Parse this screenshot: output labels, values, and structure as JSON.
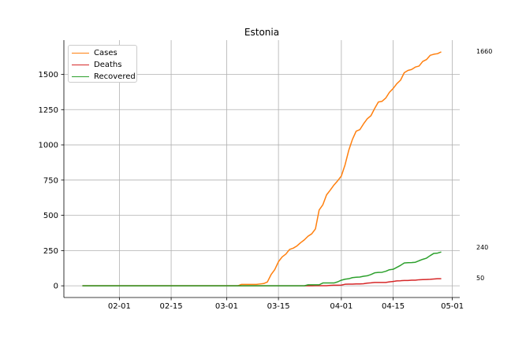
{
  "chart_data": {
    "type": "line",
    "title": "Estonia",
    "xlabel": "",
    "ylabel": "",
    "x_start": "2020-01-22",
    "x_end": "2020-04-28",
    "xlim": [
      "2020-01-17",
      "2020-05-03"
    ],
    "ylim": [
      -83,
      1743
    ],
    "grid": true,
    "legend_position": "top-left",
    "x_ticks": [
      {
        "date": "2020-02-01",
        "label": "02-01"
      },
      {
        "date": "2020-02-15",
        "label": "02-15"
      },
      {
        "date": "2020-03-01",
        "label": "03-01"
      },
      {
        "date": "2020-03-15",
        "label": "03-15"
      },
      {
        "date": "2020-04-01",
        "label": "04-01"
      },
      {
        "date": "2020-04-15",
        "label": "04-15"
      },
      {
        "date": "2020-05-01",
        "label": "05-01"
      }
    ],
    "y_ticks": [
      0,
      250,
      500,
      750,
      1000,
      1250,
      1500
    ],
    "series": [
      {
        "name": "Cases",
        "color": "#ff7f0e",
        "end_label": "1660",
        "points": [
          [
            "2020-01-22",
            0
          ],
          [
            "2020-03-04",
            0
          ],
          [
            "2020-03-05",
            10
          ],
          [
            "2020-03-06",
            10
          ],
          [
            "2020-03-07",
            10
          ],
          [
            "2020-03-08",
            10
          ],
          [
            "2020-03-09",
            10
          ],
          [
            "2020-03-10",
            13
          ],
          [
            "2020-03-11",
            16
          ],
          [
            "2020-03-12",
            27
          ],
          [
            "2020-03-13",
            79
          ],
          [
            "2020-03-14",
            115
          ],
          [
            "2020-03-15",
            171
          ],
          [
            "2020-03-16",
            205
          ],
          [
            "2020-03-17",
            225
          ],
          [
            "2020-03-18",
            258
          ],
          [
            "2020-03-19",
            267
          ],
          [
            "2020-03-20",
            283
          ],
          [
            "2020-03-21",
            306
          ],
          [
            "2020-03-22",
            326
          ],
          [
            "2020-03-23",
            352
          ],
          [
            "2020-03-24",
            369
          ],
          [
            "2020-03-25",
            404
          ],
          [
            "2020-03-26",
            538
          ],
          [
            "2020-03-27",
            575
          ],
          [
            "2020-03-28",
            645
          ],
          [
            "2020-03-29",
            679
          ],
          [
            "2020-03-30",
            715
          ],
          [
            "2020-03-31",
            745
          ],
          [
            "2020-04-01",
            779
          ],
          [
            "2020-04-02",
            858
          ],
          [
            "2020-04-03",
            961
          ],
          [
            "2020-04-04",
            1039
          ],
          [
            "2020-04-05",
            1097
          ],
          [
            "2020-04-06",
            1108
          ],
          [
            "2020-04-07",
            1149
          ],
          [
            "2020-04-08",
            1185
          ],
          [
            "2020-04-09",
            1207
          ],
          [
            "2020-04-10",
            1258
          ],
          [
            "2020-04-11",
            1304
          ],
          [
            "2020-04-12",
            1309
          ],
          [
            "2020-04-13",
            1332
          ],
          [
            "2020-04-14",
            1373
          ],
          [
            "2020-04-15",
            1400
          ],
          [
            "2020-04-16",
            1434
          ],
          [
            "2020-04-17",
            1459
          ],
          [
            "2020-04-18",
            1512
          ],
          [
            "2020-04-19",
            1528
          ],
          [
            "2020-04-20",
            1535
          ],
          [
            "2020-04-21",
            1552
          ],
          [
            "2020-04-22",
            1559
          ],
          [
            "2020-04-23",
            1592
          ],
          [
            "2020-04-24",
            1605
          ],
          [
            "2020-04-25",
            1635
          ],
          [
            "2020-04-26",
            1643
          ],
          [
            "2020-04-27",
            1647
          ],
          [
            "2020-04-28",
            1660
          ]
        ]
      },
      {
        "name": "Deaths",
        "color": "#d62728",
        "end_label": "50",
        "points": [
          [
            "2020-01-22",
            0
          ],
          [
            "2020-03-24",
            0
          ],
          [
            "2020-03-25",
            1
          ],
          [
            "2020-03-26",
            1
          ],
          [
            "2020-03-27",
            1
          ],
          [
            "2020-03-28",
            1
          ],
          [
            "2020-03-29",
            3
          ],
          [
            "2020-03-30",
            4
          ],
          [
            "2020-03-31",
            4
          ],
          [
            "2020-04-01",
            5
          ],
          [
            "2020-04-02",
            11
          ],
          [
            "2020-04-03",
            12
          ],
          [
            "2020-04-04",
            12
          ],
          [
            "2020-04-05",
            13
          ],
          [
            "2020-04-06",
            13
          ],
          [
            "2020-04-07",
            15
          ],
          [
            "2020-04-08",
            19
          ],
          [
            "2020-04-09",
            21
          ],
          [
            "2020-04-10",
            24
          ],
          [
            "2020-04-11",
            24
          ],
          [
            "2020-04-12",
            24
          ],
          [
            "2020-04-13",
            24
          ],
          [
            "2020-04-14",
            28
          ],
          [
            "2020-04-15",
            31
          ],
          [
            "2020-04-16",
            35
          ],
          [
            "2020-04-17",
            36
          ],
          [
            "2020-04-18",
            38
          ],
          [
            "2020-04-19",
            38
          ],
          [
            "2020-04-20",
            40
          ],
          [
            "2020-04-21",
            40
          ],
          [
            "2020-04-22",
            43
          ],
          [
            "2020-04-23",
            44
          ],
          [
            "2020-04-24",
            45
          ],
          [
            "2020-04-25",
            46
          ],
          [
            "2020-04-26",
            48
          ],
          [
            "2020-04-27",
            50
          ],
          [
            "2020-04-28",
            50
          ]
        ]
      },
      {
        "name": "Recovered",
        "color": "#2ca02c",
        "end_label": "240",
        "points": [
          [
            "2020-01-22",
            0
          ],
          [
            "2020-03-22",
            0
          ],
          [
            "2020-03-23",
            7
          ],
          [
            "2020-03-24",
            7
          ],
          [
            "2020-03-25",
            7
          ],
          [
            "2020-03-26",
            7
          ],
          [
            "2020-03-27",
            20
          ],
          [
            "2020-03-28",
            20
          ],
          [
            "2020-03-29",
            20
          ],
          [
            "2020-03-30",
            20
          ],
          [
            "2020-03-31",
            28
          ],
          [
            "2020-04-01",
            40
          ],
          [
            "2020-04-02",
            47
          ],
          [
            "2020-04-03",
            50
          ],
          [
            "2020-04-04",
            58
          ],
          [
            "2020-04-05",
            61
          ],
          [
            "2020-04-06",
            62
          ],
          [
            "2020-04-07",
            68
          ],
          [
            "2020-04-08",
            71
          ],
          [
            "2020-04-09",
            80
          ],
          [
            "2020-04-10",
            92
          ],
          [
            "2020-04-11",
            95
          ],
          [
            "2020-04-12",
            96
          ],
          [
            "2020-04-13",
            103
          ],
          [
            "2020-04-14",
            114
          ],
          [
            "2020-04-15",
            117
          ],
          [
            "2020-04-16",
            131
          ],
          [
            "2020-04-17",
            145
          ],
          [
            "2020-04-18",
            162
          ],
          [
            "2020-04-19",
            164
          ],
          [
            "2020-04-20",
            165
          ],
          [
            "2020-04-21",
            167
          ],
          [
            "2020-04-22",
            178
          ],
          [
            "2020-04-23",
            188
          ],
          [
            "2020-04-24",
            196
          ],
          [
            "2020-04-25",
            214
          ],
          [
            "2020-04-26",
            230
          ],
          [
            "2020-04-27",
            232
          ],
          [
            "2020-04-28",
            240
          ]
        ]
      }
    ]
  }
}
